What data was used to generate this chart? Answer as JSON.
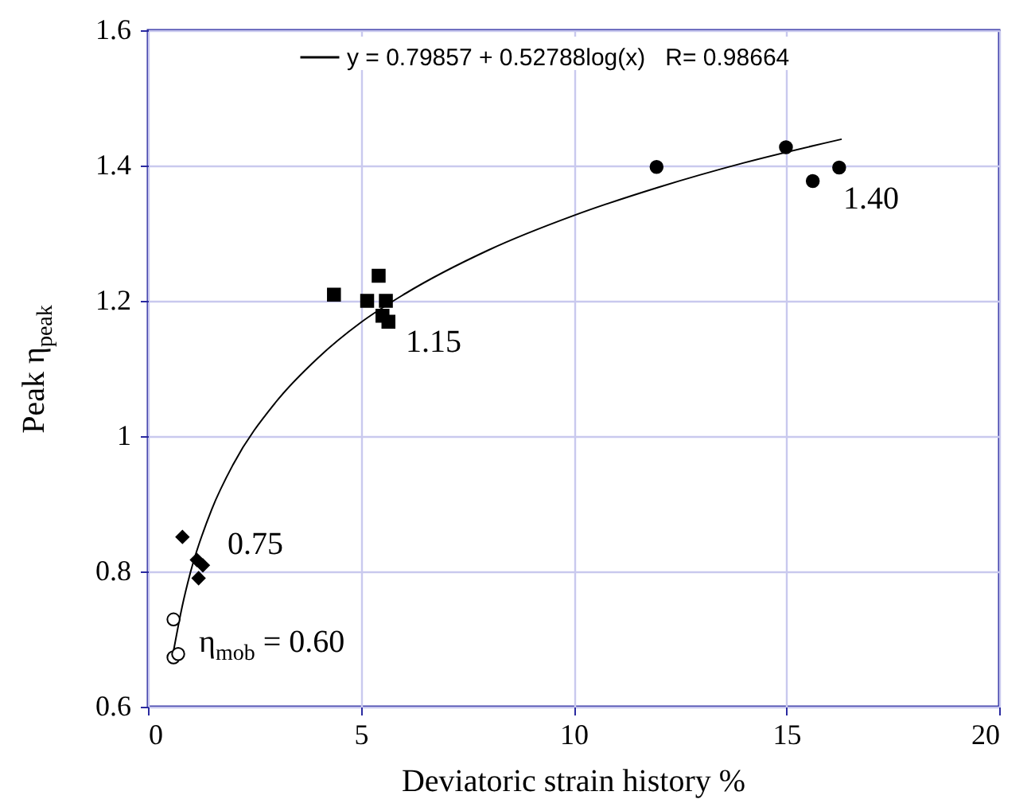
{
  "chart_data": {
    "type": "scatter",
    "xlabel": "Deviatoric strain history %",
    "ylabel": "Peak η$_{peak}$",
    "xlim": [
      0,
      20
    ],
    "xticks": [
      0,
      5,
      10,
      15,
      20
    ],
    "ylim": [
      0.6,
      1.6
    ],
    "yticks": [
      0.6,
      0.8,
      1,
      1.2,
      1.4,
      1.6
    ],
    "grid": true,
    "legend": "top",
    "series": [
      {
        "color": "#ffffff",
        "marker": "circle",
        "x": [
          0.6,
          0.6,
          0.71
        ],
        "values": [
          0.729,
          0.673,
          0.678
        ]
      },
      {
        "color": "#000000",
        "marker": "diamond",
        "x": [
          0.81,
          1.15,
          1.29,
          1.19
        ],
        "values": [
          0.851,
          0.817,
          0.809,
          0.79
        ]
      },
      {
        "color": "#000000",
        "marker": "square",
        "x": [
          4.37,
          5.42,
          5.15,
          5.59,
          5.51,
          5.65
        ],
        "values": [
          1.209,
          1.237,
          1.2,
          1.2,
          1.178,
          1.169
        ]
      },
      {
        "color": "#000000",
        "marker": "circle",
        "x": [
          11.95,
          14.99,
          15.62,
          16.24
        ],
        "values": [
          1.398,
          1.427,
          1.377,
          1.397
        ]
      },
      {
        "type": "line",
        "name": "y = 0.79857 + 0.52788log(x)   R= 0.98664",
        "color": "#000000",
        "marker": "none",
        "line_style": "solid",
        "x": [
          0.6,
          0.8,
          1,
          1.5,
          2,
          3,
          4,
          5,
          6,
          8,
          10,
          12,
          14,
          16.3
        ],
        "values": [
          0.682,
          0.747,
          0.799,
          0.892,
          0.958,
          1.05,
          1.116,
          1.168,
          1.209,
          1.275,
          1.326,
          1.368,
          1.404,
          1.439
        ]
      }
    ],
    "annotations": [
      "0.75",
      "η$_{mob}$ = 0.60",
      "1.15",
      "1.40"
    ]
  }
}
